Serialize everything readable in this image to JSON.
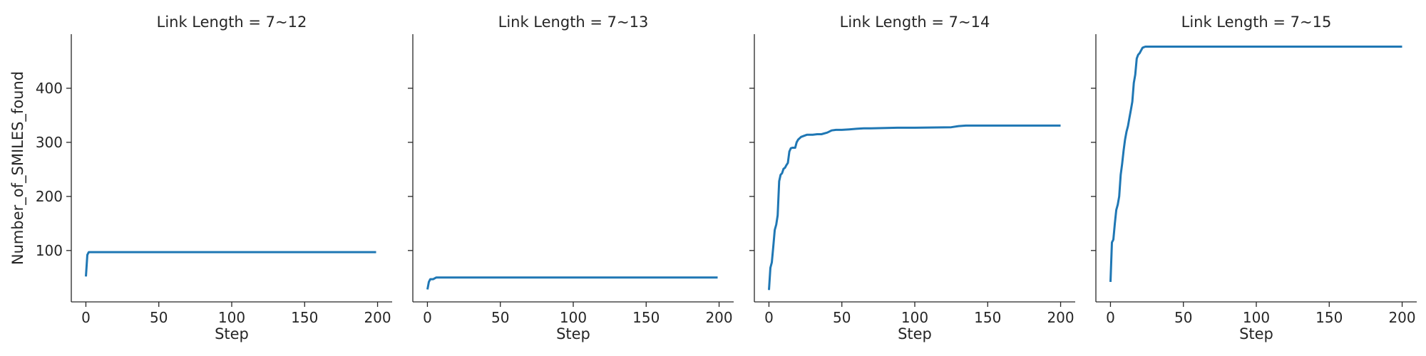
{
  "chart_data": [
    {
      "type": "line",
      "title": "Link Length = 7~12",
      "xlabel": "Step",
      "ylabel": "Number_of_SMILES_found",
      "xlim": [
        -10,
        210
      ],
      "ylim": [
        5,
        500
      ],
      "xticks": [
        0,
        50,
        100,
        150,
        200
      ],
      "yticks": [
        100,
        200,
        300,
        400
      ],
      "grid": false,
      "color": "#1f77b4",
      "series": [
        {
          "x": [
            0,
            1,
            2,
            3,
            199
          ],
          "y": [
            52,
            92,
            97,
            97,
            97
          ]
        }
      ]
    },
    {
      "type": "line",
      "title": "Link Length = 7~13",
      "xlabel": "Step",
      "ylabel": "",
      "xlim": [
        -10,
        210
      ],
      "ylim": [
        5,
        500
      ],
      "xticks": [
        0,
        50,
        100,
        150,
        200
      ],
      "yticks": [
        100,
        200,
        300,
        400
      ],
      "grid": false,
      "color": "#1f77b4",
      "series": [
        {
          "x": [
            0,
            1,
            2,
            4,
            6,
            199
          ],
          "y": [
            28,
            42,
            47,
            47,
            50,
            50
          ]
        }
      ]
    },
    {
      "type": "line",
      "title": "Link Length = 7~14",
      "xlabel": "Step",
      "ylabel": "",
      "xlim": [
        -10,
        210
      ],
      "ylim": [
        5,
        500
      ],
      "xticks": [
        0,
        50,
        100,
        150,
        200
      ],
      "yticks": [
        100,
        200,
        300,
        400
      ],
      "grid": false,
      "color": "#1f77b4",
      "series": [
        {
          "x": [
            0,
            1,
            2,
            3,
            4,
            5,
            6,
            7,
            8,
            9,
            10,
            11,
            12,
            13,
            14,
            15,
            16,
            17,
            18,
            19,
            20,
            22,
            24,
            26,
            28,
            30,
            33,
            36,
            40,
            43,
            46,
            48,
            50,
            55,
            60,
            65,
            70,
            88,
            100,
            125,
            130,
            135,
            200
          ],
          "y": [
            27,
            68,
            78,
            108,
            138,
            148,
            165,
            228,
            240,
            243,
            251,
            253,
            258,
            262,
            283,
            289,
            290,
            290,
            290,
            300,
            305,
            310,
            312,
            314,
            314,
            314,
            315,
            315,
            318,
            322,
            323,
            323,
            323,
            324,
            325,
            326,
            326,
            327,
            327,
            328,
            330,
            331,
            331
          ]
        }
      ]
    },
    {
      "type": "line",
      "title": "Link Length = 7~15",
      "xlabel": "Step",
      "ylabel": "",
      "xlim": [
        -10,
        210
      ],
      "ylim": [
        5,
        500
      ],
      "xticks": [
        0,
        50,
        100,
        150,
        200
      ],
      "yticks": [
        100,
        200,
        300,
        400
      ],
      "grid": false,
      "color": "#1f77b4",
      "series": [
        {
          "x": [
            0,
            1,
            2,
            3,
            4,
            5,
            6,
            7,
            8,
            9,
            10,
            11,
            12,
            13,
            14,
            15,
            16,
            17,
            18,
            19,
            20,
            21,
            22,
            23,
            24,
            25,
            30,
            200
          ],
          "y": [
            42,
            115,
            120,
            150,
            175,
            185,
            200,
            240,
            260,
            285,
            305,
            320,
            330,
            345,
            360,
            375,
            410,
            425,
            455,
            462,
            465,
            470,
            475,
            476,
            477,
            477,
            477,
            477
          ]
        }
      ]
    }
  ]
}
